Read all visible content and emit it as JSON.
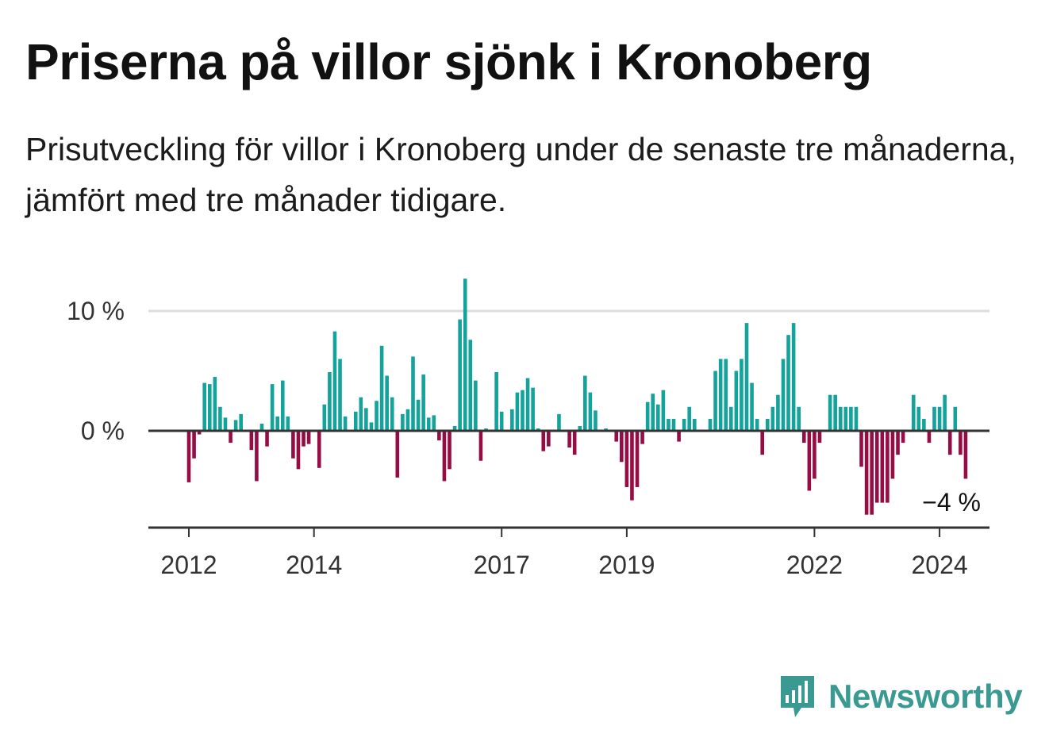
{
  "title": "Priserna på villor sjönk i Kronoberg",
  "subtitle": "Prisutveckling för villor i Kronoberg under de senaste tre månaderna, jämfört med tre månader tidigare.",
  "brand": {
    "name": "Newsworthy",
    "icon": "bar-chart-speech-bubble-icon",
    "color": "#3a9a92"
  },
  "colors": {
    "positive": "#14a39a",
    "negative": "#960d46",
    "grid": "#dddddd",
    "axis": "#333333"
  },
  "chart_data": {
    "type": "bar",
    "title": "Priserna på villor sjönk i Kronoberg",
    "unit": "%",
    "x_start": "2012-01",
    "frequency": "monthly",
    "ylim": [
      -8,
      13
    ],
    "yticks": [
      {
        "value": 0,
        "label": "0 %"
      },
      {
        "value": 10,
        "label": "10 %"
      }
    ],
    "xticks": [
      {
        "month": "2012-01",
        "label": "2012"
      },
      {
        "month": "2014-01",
        "label": "2014"
      },
      {
        "month": "2017-01",
        "label": "2017"
      },
      {
        "month": "2019-01",
        "label": "2019"
      },
      {
        "month": "2022-01",
        "label": "2022"
      },
      {
        "month": "2024-01",
        "label": "2024"
      }
    ],
    "grid": true,
    "legend": "none",
    "values": [
      -4.3,
      -2.3,
      -0.3,
      4.0,
      3.9,
      4.5,
      2.0,
      1.1,
      -1.0,
      0.9,
      1.4,
      0.0,
      -1.6,
      -4.2,
      0.6,
      -1.3,
      3.9,
      1.2,
      4.2,
      1.2,
      -2.3,
      -3.2,
      -1.3,
      -1.1,
      0.0,
      -3.1,
      2.2,
      4.9,
      8.3,
      6.0,
      1.2,
      0.0,
      1.6,
      2.8,
      1.9,
      0.7,
      2.5,
      7.1,
      4.6,
      2.8,
      -3.9,
      1.4,
      1.8,
      6.2,
      2.6,
      4.7,
      1.1,
      1.3,
      -0.8,
      -4.2,
      -3.2,
      0.4,
      9.3,
      12.7,
      7.6,
      4.2,
      -2.5,
      0.2,
      -0.1,
      4.9,
      1.6,
      0.0,
      1.8,
      3.2,
      3.4,
      4.4,
      3.6,
      0.2,
      -1.7,
      -1.3,
      0.1,
      1.4,
      0.0,
      -1.4,
      -2.0,
      0.4,
      4.6,
      3.2,
      1.7,
      0.0,
      0.2,
      0.0,
      -0.9,
      -2.6,
      -4.7,
      -5.8,
      -4.7,
      -1.1,
      2.4,
      3.1,
      2.2,
      3.4,
      1.0,
      1.0,
      -0.9,
      1.0,
      2.0,
      1.0,
      0.0,
      0.0,
      1.0,
      5.0,
      6.0,
      6.0,
      2.0,
      5.0,
      6.0,
      9.0,
      4.0,
      1.0,
      -2.0,
      1.0,
      2.0,
      3.0,
      6.0,
      8.0,
      9.0,
      2.0,
      -1.0,
      -5.0,
      -4.0,
      -1.0,
      0.0,
      3.0,
      3.0,
      2.0,
      2.0,
      2.0,
      2.0,
      -3.0,
      -7.0,
      -7.0,
      -6.0,
      -6.0,
      -6.0,
      -4.0,
      -2.0,
      -1.0,
      0.0,
      3.0,
      2.0,
      1.0,
      -1.0,
      2.0,
      2.0,
      3.0,
      -2.0,
      2.0,
      -2.0,
      -4.0
    ],
    "last_value_label": "−4 %"
  }
}
